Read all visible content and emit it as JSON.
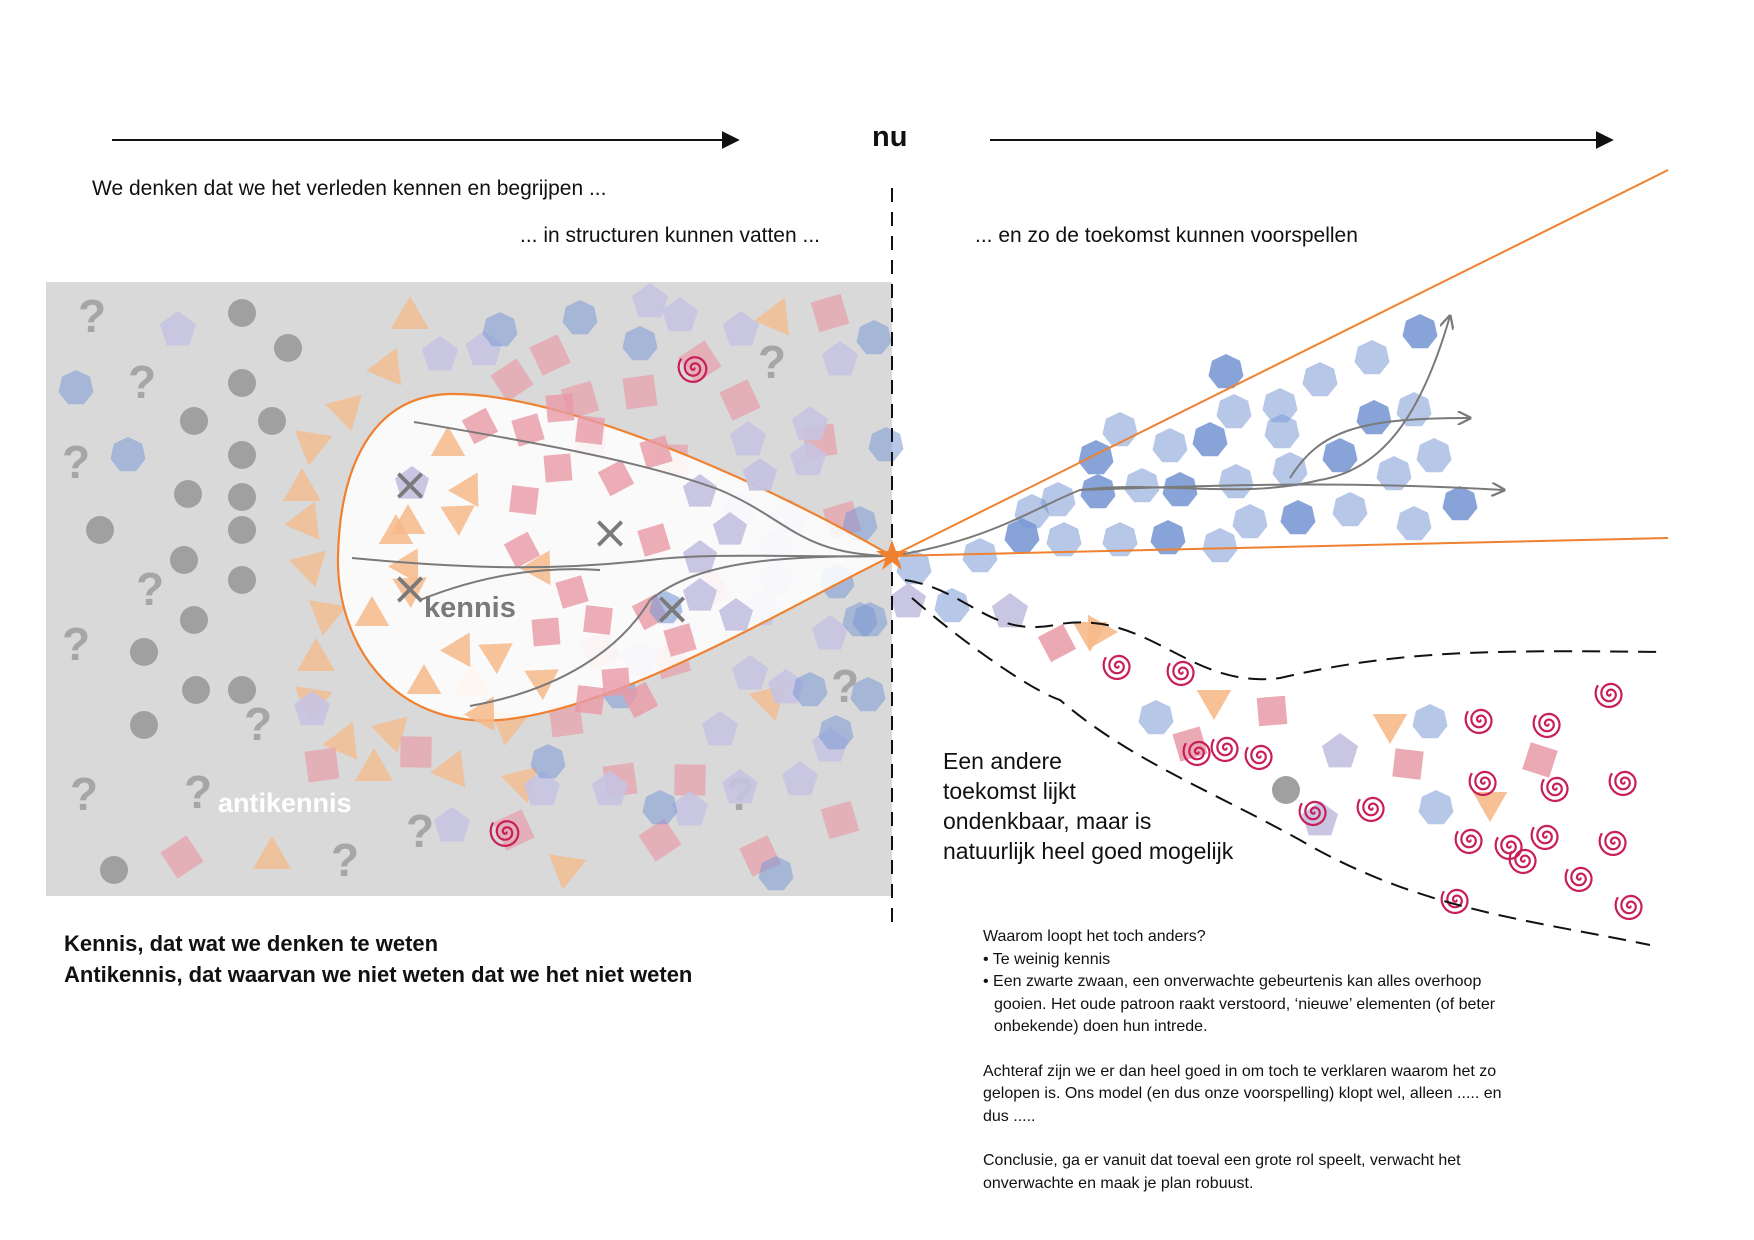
{
  "timeline": {
    "now_label": "nu"
  },
  "headings": {
    "past": "We denken dat we het verleden kennen en begrijpen ...",
    "structures": "...  in structuren kunnen vatten ...",
    "future": "...  en zo de toekomst kunnen voorspellen"
  },
  "regions": {
    "kennis": "kennis",
    "antikennis": "antikennis"
  },
  "alternative_future": {
    "lines": [
      "Een andere",
      "toekomst lijkt",
      "ondenkbaar, maar is",
      "natuurlijk heel goed mogelijk"
    ]
  },
  "legend": {
    "line1": "Kennis, dat wat we denken te weten",
    "line2": "Antikennis, dat waarvan we niet weten dat we het niet weten"
  },
  "notes": {
    "q": "Waarom loopt het toch anders?",
    "b1": "• Te weinig kennis",
    "b2a": "• Een zwarte zwaan, een onverwachte gebeurtenis kan alles overhoop",
    "b2b": "gooien. Het oude patroon raakt verstoord, ‘nieuwe’ elementen (of beter",
    "b2c": "onbekende) doen hun intrede.",
    "p2a": "Achteraf zijn we er dan heel goed in om toch te verklaren waarom het zo",
    "p2b": "gelopen is. Ons model (en dus onze voorspelling) klopt wel, alleen ..... en",
    "p2c": "dus .....",
    "p3a": "Conclusie, ga er vanuit dat toeval een grote rol speelt, verwacht het",
    "p3b": "onverwachte en maak je plan robuust."
  },
  "symbols": {
    "question_mark": "?",
    "cross": "×"
  },
  "colors": {
    "gray_box": "#d9d9d9",
    "gray_dot": "#a0a0a0",
    "question": "#a6a6a6",
    "orange": "#f08130",
    "triangle": "#f6b98a",
    "square": "#e89aa6",
    "pentagon": "#c6c3e2",
    "heptagon": "#7b99d4",
    "spiral": "#c81f5a",
    "path": "#7a7a7a"
  }
}
